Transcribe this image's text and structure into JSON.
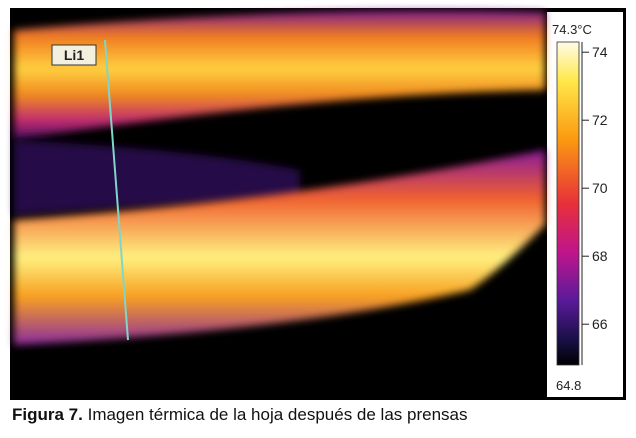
{
  "image": {
    "line_label": "Li1"
  },
  "colorbar": {
    "max": {
      "value": 74.3,
      "label": "74.3°C"
    },
    "min": 64.8,
    "ticks": [
      74,
      72,
      70,
      68,
      66
    ]
  },
  "caption": {
    "label": "Figura 7.",
    "text": "Imagen térmica de la hoja después de las prensas"
  }
}
